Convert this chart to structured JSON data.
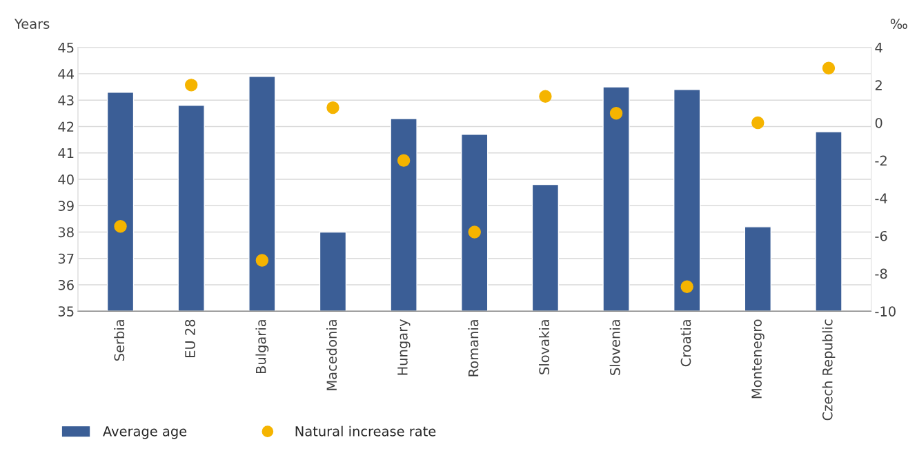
{
  "chart_data": {
    "type": "bar",
    "ylabel": "Years",
    "y2label": "‰",
    "categories": [
      "Serbia",
      "EU 28",
      "Bulgaria",
      "Macedonia",
      "Hungary",
      "Romania",
      "Slovakia",
      "Slovenia",
      "Croatia",
      "Montenegro",
      "Czech Republic"
    ],
    "series": [
      {
        "name": "Average age",
        "color": "#3b5e96",
        "values": [
          43.3,
          42.8,
          43.9,
          38.0,
          42.3,
          41.7,
          39.8,
          43.5,
          43.4,
          38.2,
          41.8
        ]
      },
      {
        "name": "Natural increase rate",
        "type": "scatter",
        "axis": "y2",
        "color": "#f5b400",
        "marker": "circle",
        "values": [
          -5.5,
          2.0,
          -7.3,
          0.8,
          -2.0,
          -5.8,
          1.4,
          0.5,
          -8.7,
          0.0,
          2.9
        ]
      }
    ],
    "ylim": [
      35,
      45
    ],
    "yticks": [
      35,
      36,
      37,
      38,
      39,
      40,
      41,
      42,
      43,
      44,
      45
    ],
    "y2lim": [
      -10,
      4
    ],
    "y2ticks": [
      -10,
      -8,
      -6,
      -4,
      -2,
      0,
      2,
      4
    ],
    "grid": "y",
    "legend": "bottom left"
  }
}
